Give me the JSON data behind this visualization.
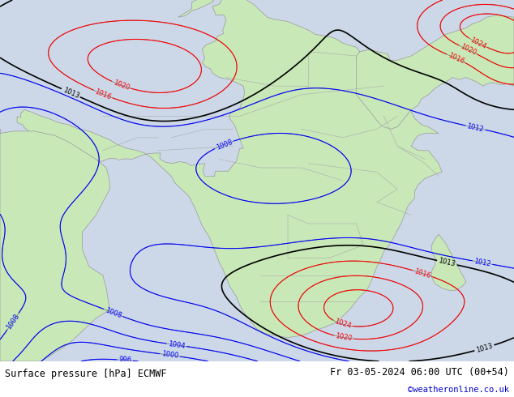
{
  "label_left": "Surface pressure [hPa] ECMWF",
  "label_right": "Fr 03-05-2024 06:00 UTC (00+54)",
  "credit": "©weatheronline.co.uk",
  "land_color": "#c8e8b8",
  "ocean_color": "#ccd8e8",
  "footer_bg": "#ffffff",
  "credit_color": "#0000cc",
  "map_xlim": [
    -20,
    55
  ],
  "map_ylim": [
    -42,
    42
  ],
  "fig_width": 6.34,
  "fig_height": 4.9
}
